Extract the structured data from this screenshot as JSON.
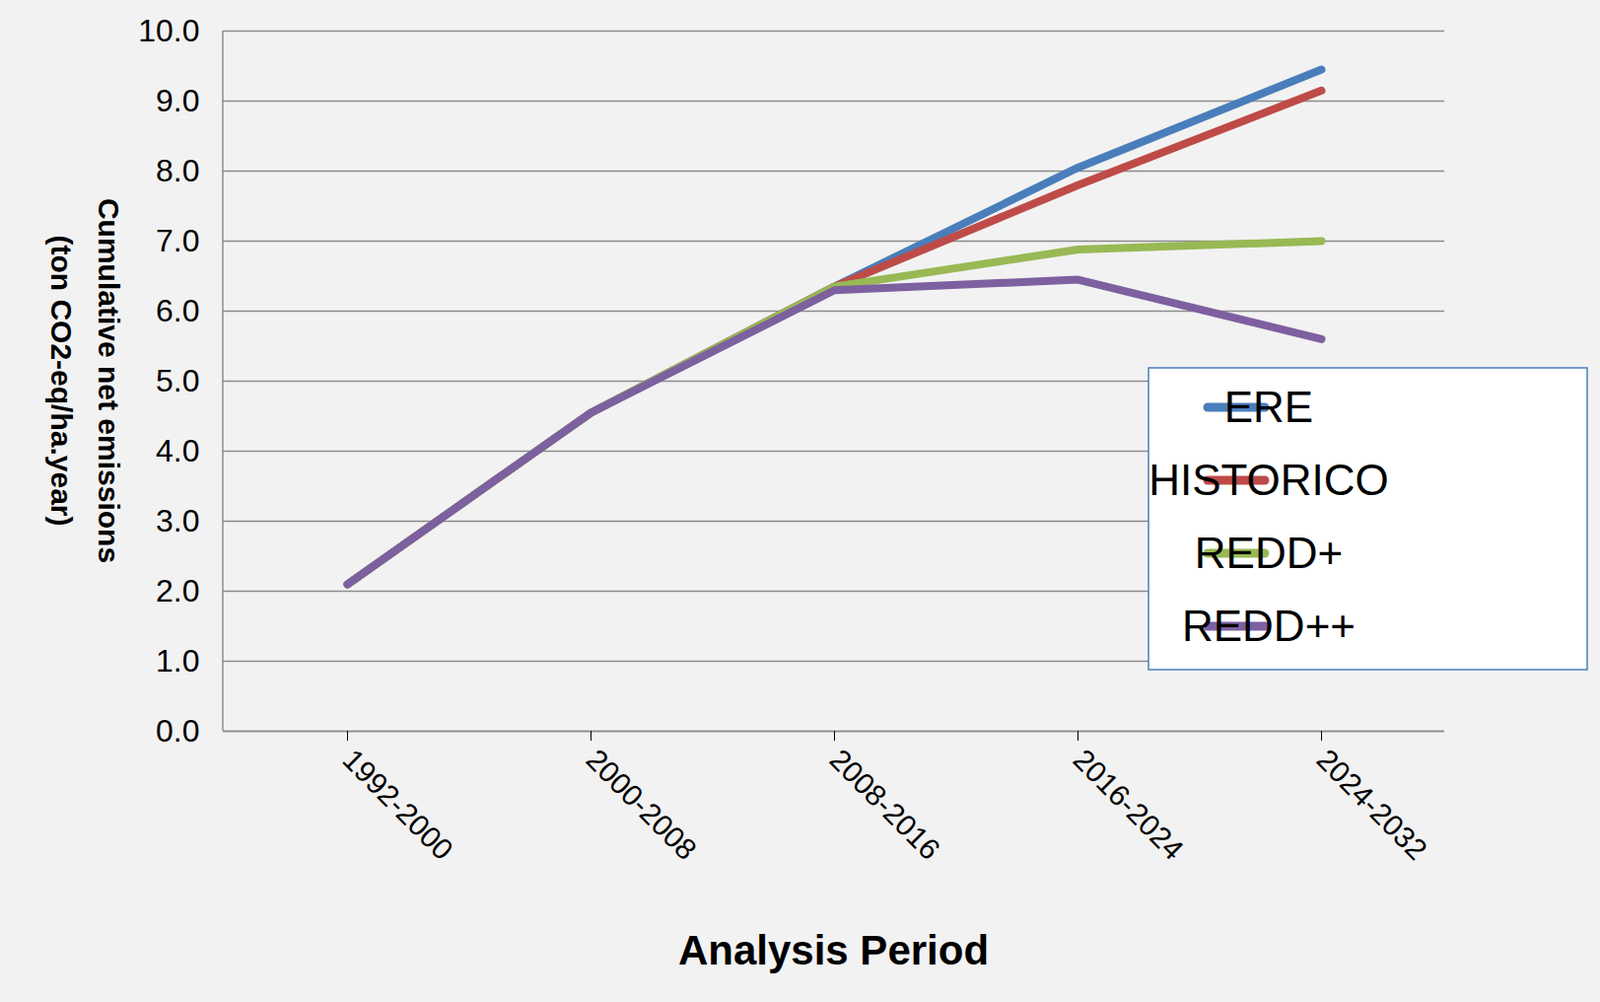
{
  "chart_data": {
    "type": "line",
    "x_label": "Analysis Period",
    "y_label": "Cumulative net emissions (ton CO2-eq/ha.year)",
    "categories": [
      "1992-2000",
      "2000-2008",
      "2008-2016",
      "2016-2024",
      "2024-2032"
    ],
    "series": [
      {
        "name": "ERE",
        "color": "#4a7ebb",
        "values": [
          2.1,
          4.55,
          6.35,
          8.05,
          9.45
        ]
      },
      {
        "name": "HISTORICO",
        "color": "#be4b48",
        "values": [
          2.1,
          4.55,
          6.35,
          7.8,
          9.15
        ]
      },
      {
        "name": "REDD+",
        "color": "#98b954",
        "values": [
          2.1,
          4.55,
          6.35,
          6.88,
          7.0
        ]
      },
      {
        "name": "REDD++",
        "color": "#7d60a0",
        "values": [
          2.1,
          4.55,
          6.3,
          6.45,
          5.6
        ]
      }
    ],
    "ylim": [
      0,
      10
    ],
    "yticks": [
      0,
      1,
      2,
      3,
      4,
      5,
      6,
      7,
      8,
      9,
      10
    ],
    "grid": true,
    "legend": "right"
  }
}
